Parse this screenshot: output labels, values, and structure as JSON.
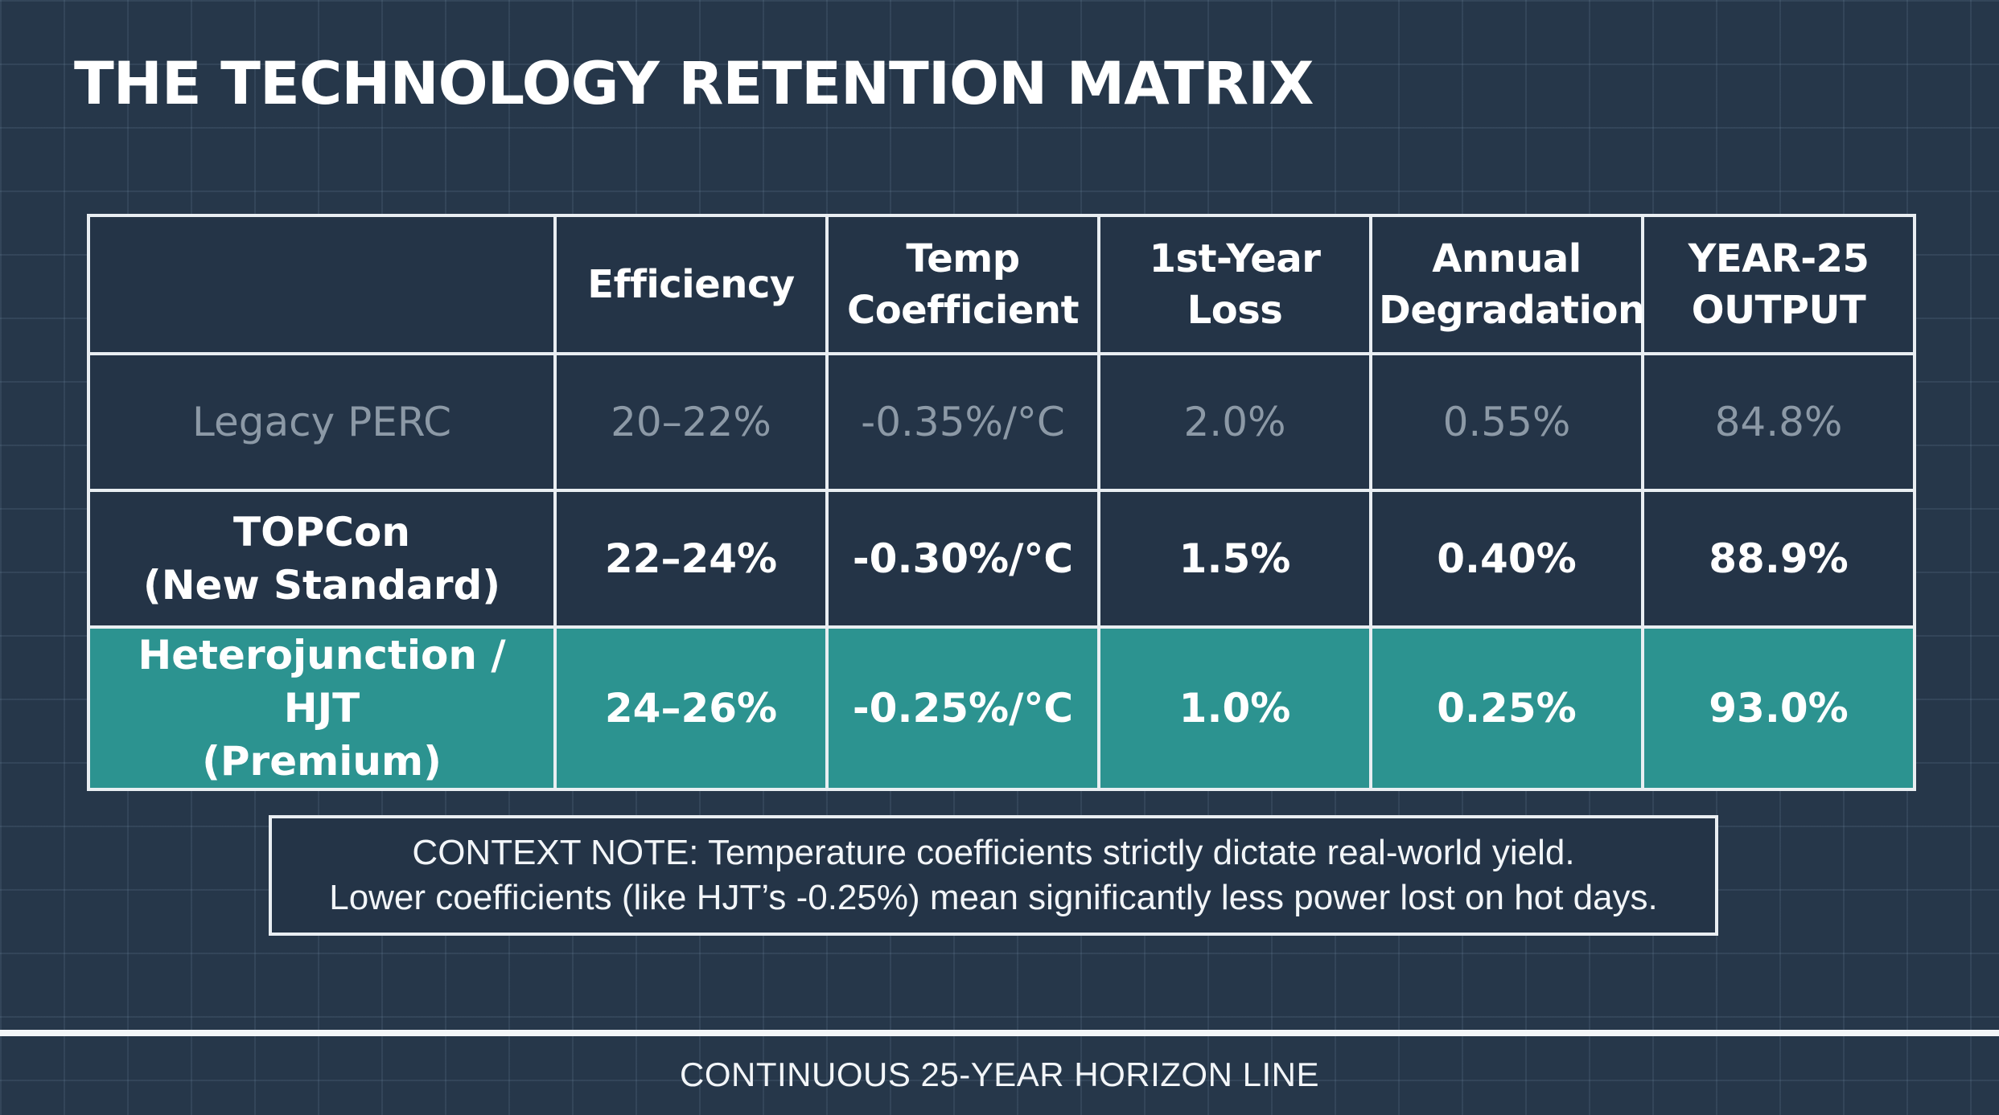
{
  "title": "THE TECHNOLOGY RETENTION MATRIX",
  "table": {
    "headers": [
      "",
      "Efficiency",
      "Temp\nCoefficient",
      "1st-Year\nLoss",
      "Annual\nDegradation",
      "YEAR-25\nOUTPUT"
    ],
    "rows": [
      {
        "label": "Legacy PERC",
        "efficiency": "20–22%",
        "temp_coefficient": "-0.35%/°C",
        "first_year_loss": "2.0%",
        "annual_degradation": "0.55%",
        "year25_output": "84.8%"
      },
      {
        "label": "TOPCon\n(New Standard)",
        "efficiency": "22–24%",
        "temp_coefficient": "-0.30%/°C",
        "first_year_loss": "1.5%",
        "annual_degradation": "0.40%",
        "year25_output": "88.9%"
      },
      {
        "label": "Heterojunction / HJT\n(Premium)",
        "efficiency": "24–26%",
        "temp_coefficient": "-0.25%/°C",
        "first_year_loss": "1.0%",
        "annual_degradation": "0.25%",
        "year25_output": "93.0%"
      }
    ]
  },
  "context_note": {
    "line1": "CONTEXT NOTE: Temperature coefficients strictly dictate real-world yield.",
    "line2": "Lower coefficients (like HJT’s -0.25%) mean significantly less power lost on hot days."
  },
  "horizon_label": "CONTINUOUS 25-YEAR HORIZON LINE",
  "colors": {
    "background": "#26374a",
    "highlight_row": "#2c9390",
    "muted_text": "#8c99a6",
    "border": "#e9eef2"
  }
}
